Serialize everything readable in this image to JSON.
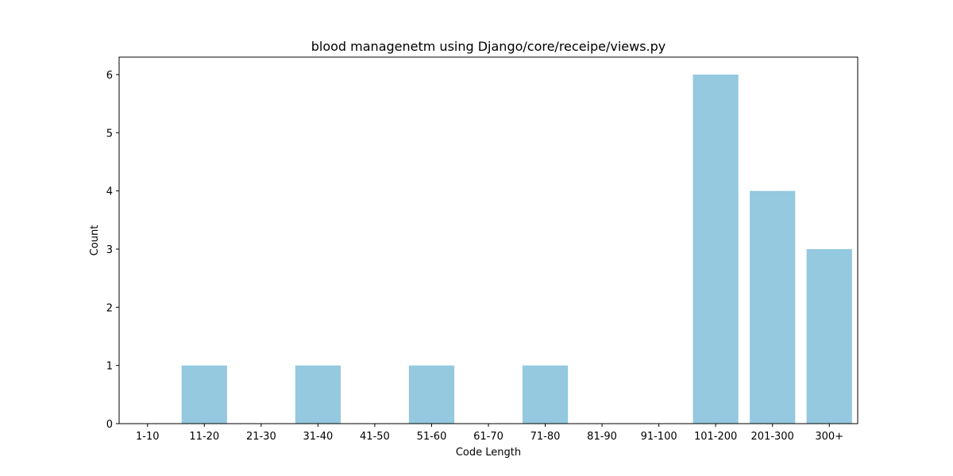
{
  "chart_data": {
    "type": "bar",
    "title": "blood managenetm using Django/core/receipe/views.py",
    "xlabel": "Code Length",
    "ylabel": "Count",
    "categories": [
      "1-10",
      "11-20",
      "21-30",
      "31-40",
      "41-50",
      "51-60",
      "61-70",
      "71-80",
      "81-90",
      "91-100",
      "101-200",
      "201-300",
      "300+"
    ],
    "values": [
      0,
      1,
      0,
      1,
      0,
      1,
      0,
      1,
      0,
      0,
      6,
      4,
      3
    ],
    "ylim": [
      0,
      6.3
    ],
    "yticks": [
      0,
      1,
      2,
      3,
      4,
      5,
      6
    ],
    "bar_color": "#94c9df",
    "grid": false,
    "legend": "none"
  }
}
